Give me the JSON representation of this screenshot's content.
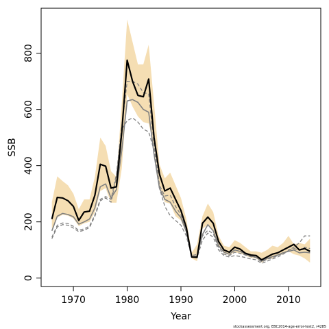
{
  "chart_data": {
    "type": "line",
    "xlabel": "Year",
    "ylabel": "SSB",
    "xlim": [
      1964,
      2016
    ],
    "ylim": [
      -30,
      960
    ],
    "xticks": [
      1970,
      1980,
      1990,
      2000,
      2010
    ],
    "yticks": [
      0,
      200,
      400,
      600,
      800
    ],
    "grid": false,
    "footnote": "stockassessment.org, EBC2014-age-error-test2, r4285",
    "colors": {
      "band": "#F5DEB3",
      "estimate": "#000000",
      "comparison": "#808080"
    },
    "x": [
      1966,
      1967,
      1968,
      1969,
      1970,
      1971,
      1972,
      1973,
      1974,
      1975,
      1976,
      1977,
      1978,
      1979,
      1980,
      1981,
      1982,
      1983,
      1984,
      1985,
      1986,
      1987,
      1988,
      1989,
      1990,
      1991,
      1992,
      1993,
      1994,
      1995,
      1996,
      1997,
      1998,
      1999,
      2000,
      2001,
      2002,
      2003,
      2004,
      2005,
      2006,
      2007,
      2008,
      2009,
      2010,
      2011,
      2012,
      2013,
      2014
    ],
    "band_lower": [
      175,
      215,
      225,
      222,
      212,
      185,
      195,
      200,
      235,
      310,
      320,
      268,
      268,
      390,
      655,
      610,
      575,
      555,
      550,
      470,
      330,
      270,
      265,
      220,
      205,
      160,
      70,
      60,
      175,
      190,
      165,
      115,
      88,
      82,
      92,
      88,
      80,
      72,
      70,
      55,
      65,
      70,
      80,
      85,
      95,
      85,
      80,
      70,
      55
    ],
    "band_upper": [
      270,
      362,
      345,
      330,
      300,
      245,
      280,
      280,
      360,
      500,
      470,
      380,
      360,
      620,
      920,
      840,
      760,
      760,
      830,
      620,
      405,
      355,
      375,
      330,
      285,
      210,
      90,
      120,
      220,
      265,
      235,
      150,
      115,
      110,
      135,
      125,
      110,
      95,
      95,
      90,
      100,
      115,
      110,
      125,
      150,
      120,
      125,
      120,
      140
    ],
    "series": [
      {
        "values": [
          210,
          287,
          285,
          275,
          255,
          205,
          235,
          238,
          295,
          405,
          398,
          320,
          325,
          520,
          775,
          700,
          650,
          645,
          708,
          500,
          370,
          310,
          320,
          280,
          240,
          180,
          75,
          74,
          195,
          217,
          195,
          130,
          100,
          92,
          110,
          103,
          88,
          82,
          80,
          65,
          75,
          85,
          90,
          100,
          110,
          120,
          100,
          105,
          95
        ]
      },
      {
        "values": [
          168,
          220,
          230,
          226,
          218,
          192,
          200,
          210,
          250,
          325,
          335,
          285,
          315,
          455,
          630,
          635,
          625,
          600,
          590,
          440,
          320,
          280,
          270,
          238,
          215,
          165,
          75,
          78,
          155,
          190,
          168,
          115,
          92,
          85,
          100,
          95,
          85,
          78,
          74,
          60,
          70,
          76,
          82,
          90,
          95,
          100,
          90,
          92,
          90
        ]
      },
      {
        "values": [
          145,
          188,
          196,
          194,
          184,
          170,
          175,
          185,
          225,
          280,
          290,
          280,
          370,
          540,
          700,
          700,
          690,
          660,
          655,
          475,
          330,
          292,
          295,
          255,
          225,
          170,
          80,
          84,
          150,
          170,
          158,
          108,
          85,
          80,
          92,
          88,
          82,
          76,
          73,
          57,
          67,
          72,
          80,
          88,
          100,
          105,
          100,
          110,
          105
        ]
      },
      {
        "values": [
          140,
          182,
          190,
          188,
          178,
          165,
          170,
          180,
          220,
          275,
          285,
          270,
          360,
          530,
          560,
          570,
          555,
          530,
          520,
          455,
          320,
          255,
          222,
          205,
          188,
          150,
          75,
          72,
          135,
          160,
          145,
          100,
          80,
          75,
          80,
          77,
          73,
          68,
          65,
          52,
          60,
          68,
          75,
          85,
          98,
          110,
          125,
          150,
          150
        ]
      }
    ]
  }
}
